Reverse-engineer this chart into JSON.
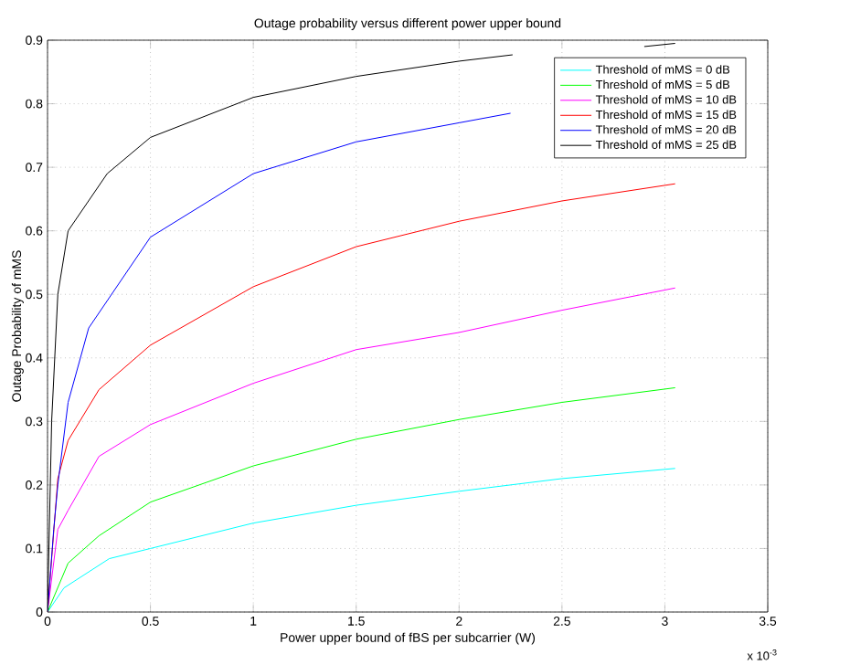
{
  "chart_data": {
    "type": "line",
    "title": "Outage probability versus different power upper bound",
    "xlabel": "Power upper bound of fBS per subcarrier (W)",
    "ylabel": "Outage Probability of mMS",
    "xlim": [
      0,
      3.5
    ],
    "ylim": [
      0,
      0.9
    ],
    "xticks": [
      0,
      0.5,
      1,
      1.5,
      2,
      2.5,
      3,
      3.5
    ],
    "yticks": [
      0,
      0.1,
      0.2,
      0.3,
      0.4,
      0.5,
      0.6,
      0.7,
      0.8,
      0.9
    ],
    "grid": true,
    "legend": "top right",
    "marker": "none",
    "line_style": "solid",
    "annotations": [
      "x 10$^{-3}$"
    ],
    "series": [
      {
        "name": "Threshold of mMS = 0 dB",
        "color": "#00ffff",
        "x": [
          0,
          0.08,
          0.3,
          0.5,
          1,
          1.5,
          2,
          2.5,
          3.05
        ],
        "values": [
          0,
          0.038,
          0.084,
          0.1,
          0.14,
          0.168,
          0.19,
          0.21,
          0.226
        ]
      },
      {
        "name": "Threshold of mMS = 5 dB",
        "color": "#00ff00",
        "x": [
          0,
          0.1,
          0.25,
          0.5,
          1,
          1.5,
          2,
          2.5,
          3.05
        ],
        "values": [
          0,
          0.077,
          0.12,
          0.173,
          0.23,
          0.272,
          0.303,
          0.33,
          0.353
        ]
      },
      {
        "name": "Threshold of mMS = 10 dB",
        "color": "#ff00ff",
        "x": [
          0,
          0.05,
          0.1,
          0.25,
          0.5,
          1,
          1.5,
          2,
          2.5,
          3.05
        ],
        "values": [
          0,
          0.13,
          0.16,
          0.245,
          0.295,
          0.36,
          0.413,
          0.44,
          0.475,
          0.51
        ]
      },
      {
        "name": "Threshold of mMS = 15 dB",
        "color": "#ff0000",
        "x": [
          0,
          0.05,
          0.1,
          0.25,
          0.5,
          1,
          1.5,
          2,
          2.5,
          3.05
        ],
        "values": [
          0,
          0.21,
          0.27,
          0.35,
          0.42,
          0.512,
          0.575,
          0.615,
          0.647,
          0.674
        ]
      },
      {
        "name": "Threshold of mMS = 20 dB",
        "color": "#0000ff",
        "x": [
          0,
          0.03,
          0.05,
          0.1,
          0.2,
          0.5,
          1,
          1.5,
          2,
          2.25
        ],
        "values": [
          0,
          0.13,
          0.2,
          0.33,
          0.447,
          0.59,
          0.69,
          0.74,
          0.77,
          0.785
        ]
      },
      {
        "name": "Threshold of mMS = 25 dB",
        "color": "#000000",
        "x": [
          0,
          0.02,
          0.05,
          0.1,
          0.29,
          0.5,
          1,
          1.5,
          2,
          2.26,
          2.6,
          2.9,
          3.05
        ],
        "values": [
          0,
          0.3,
          0.5,
          0.6,
          0.69,
          0.747,
          0.81,
          0.843,
          0.867,
          0.877,
          null,
          0.89,
          0.895
        ]
      }
    ]
  }
}
